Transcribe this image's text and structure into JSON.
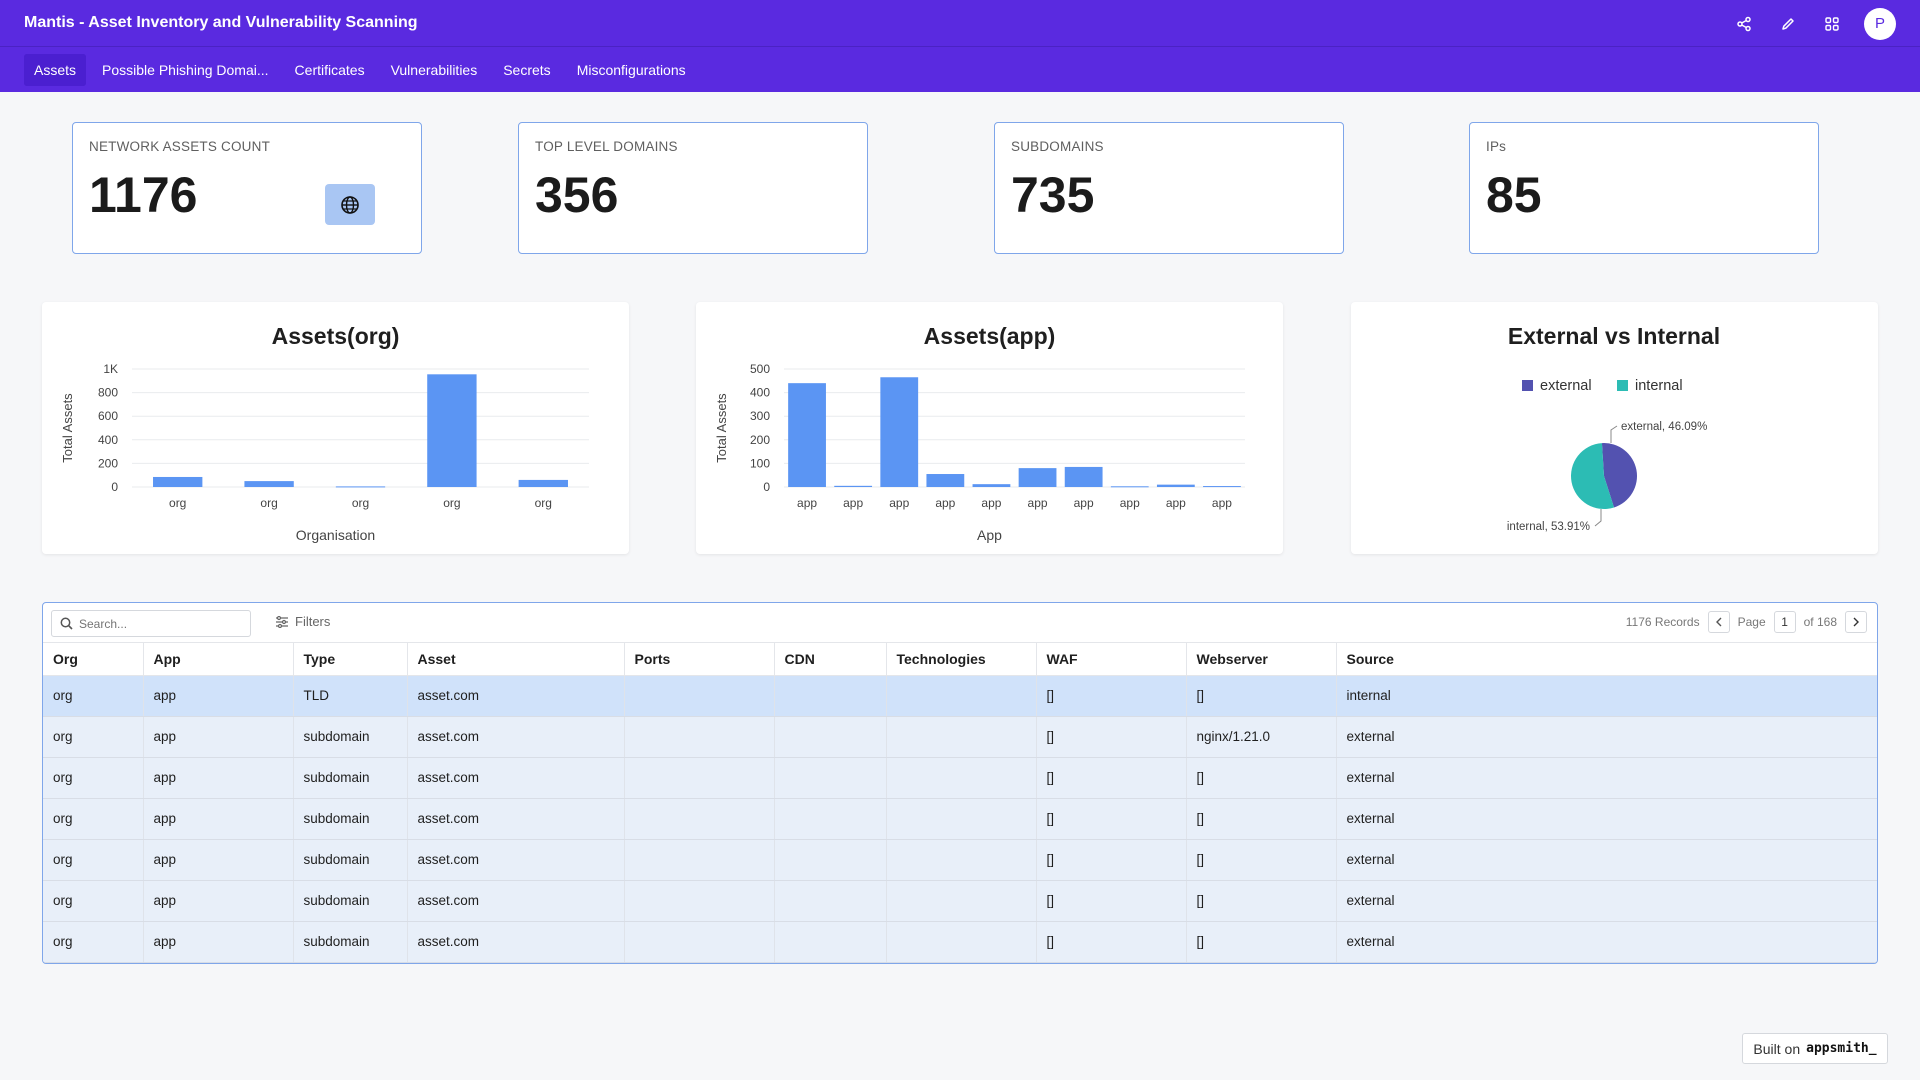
{
  "header": {
    "title": "Mantis - Asset Inventory and Vulnerability Scanning",
    "avatar_initial": "P"
  },
  "nav": {
    "tabs": [
      {
        "label": "Assets",
        "active": true
      },
      {
        "label": "Possible Phishing Domai...",
        "active": false
      },
      {
        "label": "Certificates",
        "active": false
      },
      {
        "label": "Vulnerabilities",
        "active": false
      },
      {
        "label": "Secrets",
        "active": false
      },
      {
        "label": "Misconfigurations",
        "active": false
      }
    ]
  },
  "stats": [
    {
      "label": "NETWORK ASSETS COUNT",
      "value": "1176"
    },
    {
      "label": "TOP LEVEL DOMAINS",
      "value": "356"
    },
    {
      "label": "SUBDOMAINS",
      "value": "735"
    },
    {
      "label": "IPs",
      "value": "85"
    }
  ],
  "chart_data": [
    {
      "type": "bar",
      "title": "Assets(org)",
      "xlabel": "Organisation",
      "ylabel": "Total Assets",
      "categories": [
        "org",
        "org",
        "org",
        "org",
        "org"
      ],
      "values": [
        85,
        50,
        5,
        955,
        60
      ],
      "ylim": [
        0,
        1000
      ],
      "yticks": [
        "0",
        "200",
        "400",
        "600",
        "800",
        "1K"
      ],
      "ytick_values": [
        0,
        200,
        400,
        600,
        800,
        1000
      ],
      "grid": true,
      "color": "#5b95f3"
    },
    {
      "type": "bar",
      "title": "Assets(app)",
      "xlabel": "App",
      "ylabel": "Total Assets",
      "categories": [
        "app",
        "app",
        "app",
        "app",
        "app",
        "app",
        "app",
        "app",
        "app",
        "app"
      ],
      "values": [
        440,
        5,
        465,
        55,
        12,
        80,
        85,
        3,
        10,
        4
      ],
      "ylim": [
        0,
        500
      ],
      "yticks": [
        "0",
        "100",
        "200",
        "300",
        "400",
        "500"
      ],
      "ytick_values": [
        0,
        100,
        200,
        300,
        400,
        500
      ],
      "grid": true,
      "color": "#5b95f3"
    },
    {
      "type": "pie",
      "title": "External vs Internal",
      "legend_position": "top",
      "slices": [
        {
          "name": "external",
          "value": 46.09,
          "label": "external, 46.09%",
          "color": "#5352b0"
        },
        {
          "name": "internal",
          "value": 53.91,
          "label": "internal, 53.91%",
          "color": "#2cbcb4"
        }
      ]
    }
  ],
  "table": {
    "search_placeholder": "Search...",
    "filters_label": "Filters",
    "records_label": "1176 Records",
    "page_label": "Page",
    "page_number": "1",
    "page_of": "of 168",
    "columns": [
      "Org",
      "App",
      "Type",
      "Asset",
      "Ports",
      "CDN",
      "Technologies",
      "WAF",
      "Webserver",
      "Source"
    ],
    "rows": [
      [
        "org",
        "app",
        "TLD",
        "asset.com",
        "",
        "",
        "",
        "[]",
        "[]",
        "internal"
      ],
      [
        "org",
        "app",
        "subdomain",
        "asset.com",
        "",
        "",
        "",
        "[]",
        "nginx/1.21.0",
        "external"
      ],
      [
        "org",
        "app",
        "subdomain",
        "asset.com",
        "",
        "",
        "",
        "[]",
        "[]",
        "external"
      ],
      [
        "org",
        "app",
        "subdomain",
        "asset.com",
        "",
        "",
        "",
        "[]",
        "[]",
        "external"
      ],
      [
        "org",
        "app",
        "subdomain",
        "asset.com",
        "",
        "",
        "",
        "[]",
        "[]",
        "external"
      ],
      [
        "org",
        "app",
        "subdomain",
        "asset.com",
        "",
        "",
        "",
        "[]",
        "[]",
        "external"
      ],
      [
        "org",
        "app",
        "subdomain",
        "asset.com",
        "",
        "",
        "",
        "[]",
        "[]",
        "external"
      ]
    ],
    "selected_row": 0
  },
  "footer": {
    "built_on": "Built on",
    "brand": "appsmith_"
  },
  "icons": {
    "share": "share-icon",
    "edit": "pencil-icon",
    "apps": "grid-icon",
    "globe": "globe-icon",
    "search": "search-icon",
    "filters": "filter-lines-icon"
  }
}
